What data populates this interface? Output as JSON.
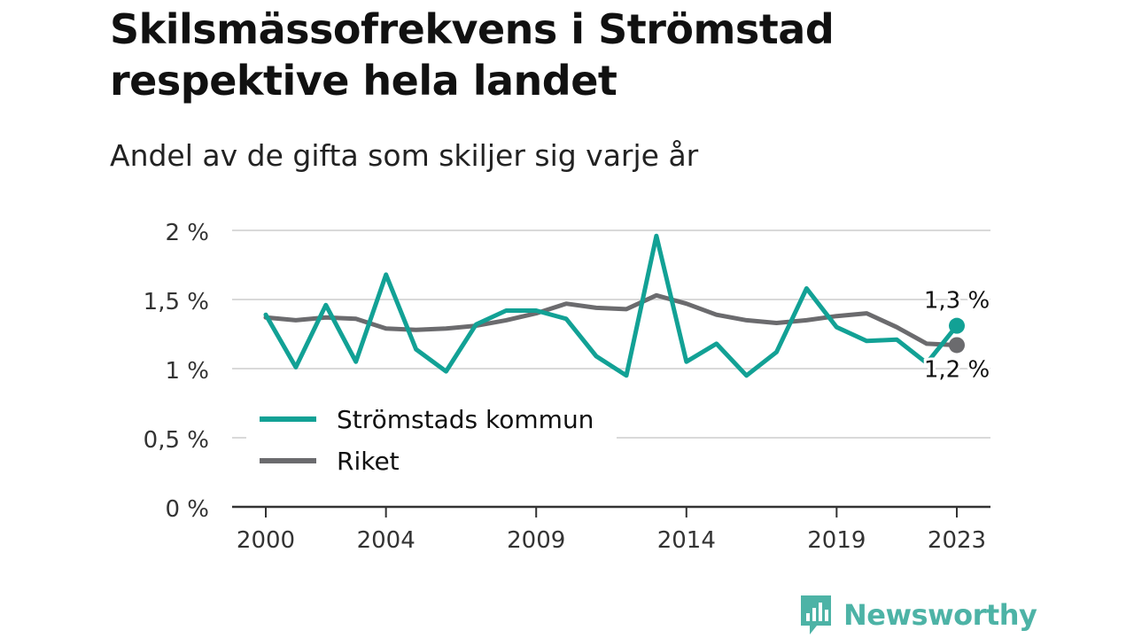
{
  "title_line1": "Skilsmässofrekvens i Strömstad",
  "title_line2": "respektive hela landet",
  "subtitle": "Andel av de gifta som skiljer sig varje år",
  "brand": {
    "name": "Newsworthy",
    "color": "#4db3a6"
  },
  "chart_data": {
    "type": "line",
    "x": [
      2000,
      2001,
      2002,
      2003,
      2004,
      2005,
      2006,
      2007,
      2008,
      2009,
      2010,
      2011,
      2012,
      2013,
      2014,
      2015,
      2016,
      2017,
      2018,
      2019,
      2020,
      2021,
      2022,
      2023
    ],
    "x_ticks": [
      2000,
      2004,
      2009,
      2014,
      2019,
      2023
    ],
    "x_tick_labels": [
      "2000",
      "2004",
      "2009",
      "2014",
      "2019",
      "2023"
    ],
    "ylim": [
      0,
      2
    ],
    "y_ticks": [
      0,
      0.5,
      1,
      1.5,
      2
    ],
    "y_tick_labels": [
      "0 %",
      "0,5 %",
      "1 %",
      "1,5 %",
      "2 %"
    ],
    "grid": true,
    "legend_position": "bottom-left",
    "series": [
      {
        "name": "Strömstads kommun",
        "color": "#12a195",
        "values": [
          1.39,
          1.01,
          1.46,
          1.05,
          1.68,
          1.14,
          0.98,
          1.32,
          1.42,
          1.42,
          1.36,
          1.09,
          0.95,
          1.96,
          1.05,
          1.18,
          0.95,
          1.12,
          1.58,
          1.3,
          1.2,
          1.21,
          1.04,
          1.31
        ],
        "end_label": "1,3 %"
      },
      {
        "name": "Riket",
        "color": "#6b6b6e",
        "values": [
          1.37,
          1.35,
          1.37,
          1.36,
          1.29,
          1.28,
          1.29,
          1.31,
          1.35,
          1.4,
          1.47,
          1.44,
          1.43,
          1.53,
          1.47,
          1.39,
          1.35,
          1.33,
          1.35,
          1.38,
          1.4,
          1.3,
          1.18,
          1.17
        ],
        "end_label": "1,2 %"
      }
    ]
  }
}
